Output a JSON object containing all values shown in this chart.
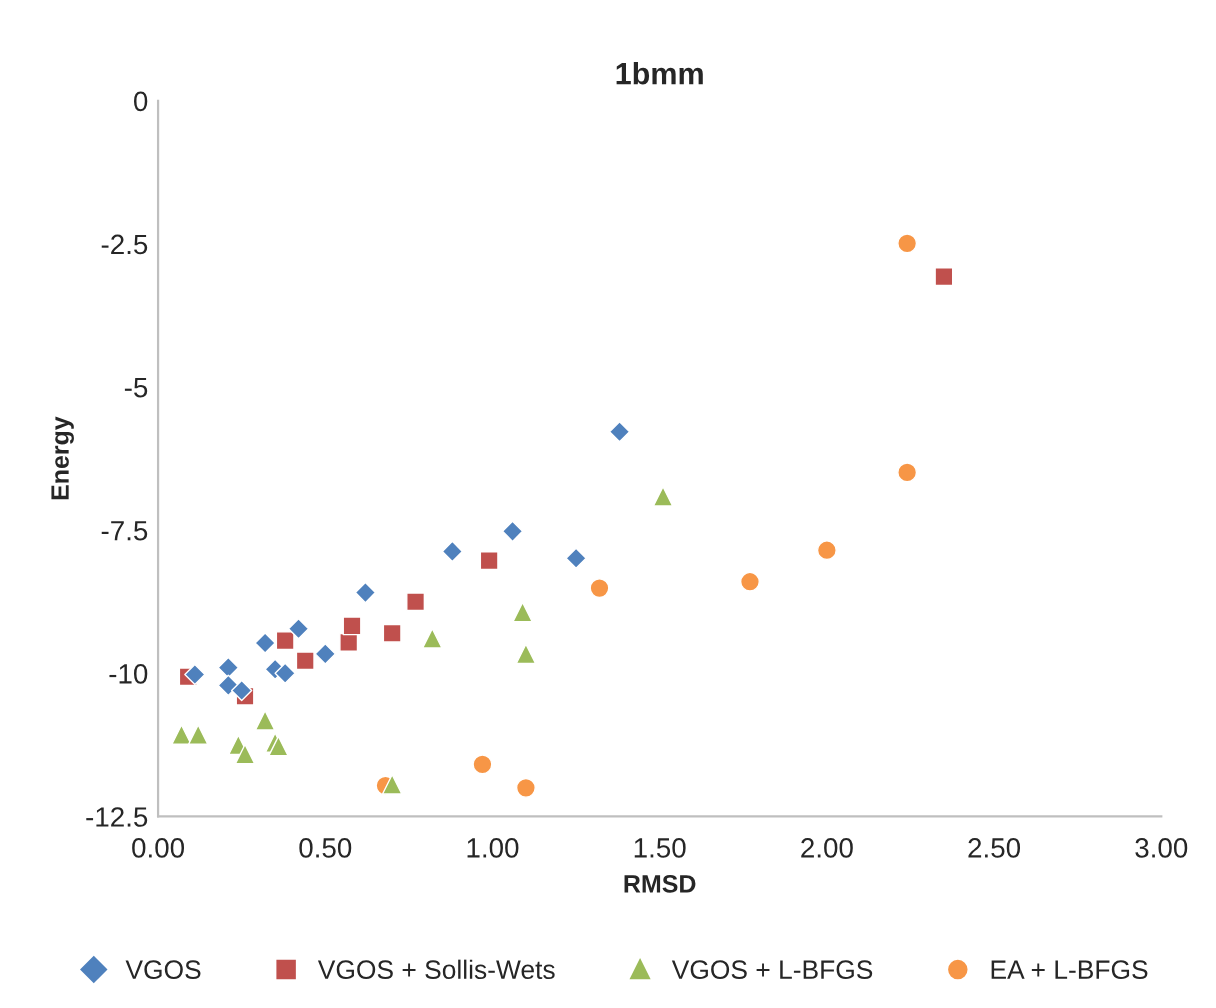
{
  "chart_data": {
    "type": "scatter",
    "title": "1bmm",
    "xlabel": "RMSD",
    "ylabel": "Energy",
    "xlim": [
      0,
      3
    ],
    "xticks": [
      {
        "value": 0,
        "label": "0.00"
      },
      {
        "value": 0.5,
        "label": "0.50"
      },
      {
        "value": 1,
        "label": "1.00"
      },
      {
        "value": 1.5,
        "label": "1.50"
      },
      {
        "value": 2,
        "label": "2.00"
      },
      {
        "value": 2.5,
        "label": "2.50"
      },
      {
        "value": 3,
        "label": "3.00"
      }
    ],
    "ylim": [
      -12.5,
      0
    ],
    "yticks": [
      -12.5,
      -10,
      -7.5,
      -5,
      -2.5,
      0
    ],
    "grid": false,
    "legend": "bottom",
    "series": [
      {
        "name": "VGOS",
        "color": "#4f81bd",
        "marker": "diamond",
        "x": [
          0.11,
          0.21,
          0.21,
          0.25,
          0.32,
          0.35,
          0.38,
          0.42,
          0.5,
          0.62,
          0.88,
          1.06,
          1.25,
          1.38
        ],
        "values": [
          -10.02,
          -9.9,
          -10.21,
          -10.3,
          -9.47,
          -9.93,
          -10.0,
          -9.22,
          -9.66,
          -8.59,
          -7.87,
          -7.52,
          -7.99,
          -5.78
        ]
      },
      {
        "name": "VGOS + Sollis-Wets",
        "color": "#c0504d",
        "marker": "square",
        "x": [
          0.09,
          0.26,
          0.38,
          0.44,
          0.57,
          0.58,
          0.7,
          0.77,
          0.99,
          2.35
        ],
        "values": [
          -10.06,
          -10.4,
          -9.43,
          -9.78,
          -9.46,
          -9.17,
          -9.3,
          -8.75,
          -8.03,
          -3.07
        ]
      },
      {
        "name": "VGOS + L-BFGS",
        "color": "#9bbb59",
        "marker": "triangle",
        "x": [
          0.07,
          0.12,
          0.24,
          0.26,
          0.32,
          0.35,
          0.36,
          0.7,
          0.82,
          1.09,
          1.1,
          1.51
        ],
        "values": [
          -11.07,
          -11.07,
          -11.25,
          -11.41,
          -10.82,
          -11.21,
          -11.27,
          -11.94,
          -9.39,
          -8.93,
          -9.66,
          -6.91
        ]
      },
      {
        "name": "EA + L-BFGS",
        "color": "#f79646",
        "marker": "circle",
        "x": [
          0.68,
          0.97,
          1.1,
          1.32,
          1.77,
          2.0,
          2.24,
          2.24
        ],
        "values": [
          -11.96,
          -11.59,
          -12.0,
          -8.51,
          -8.4,
          -7.85,
          -6.49,
          -2.49
        ]
      }
    ]
  }
}
